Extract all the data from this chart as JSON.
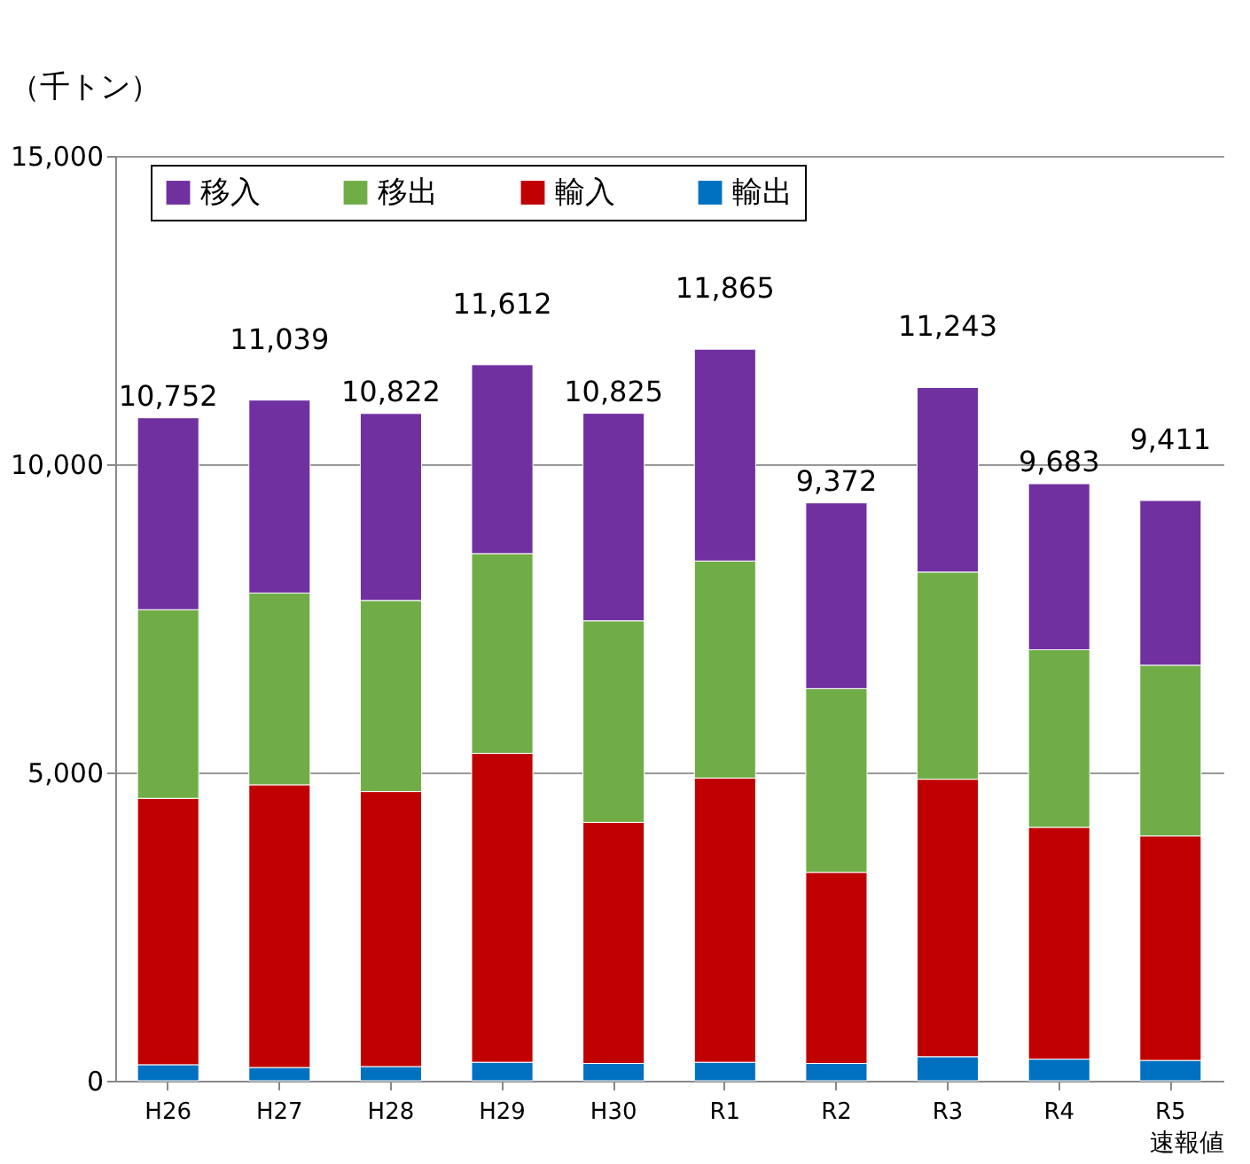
{
  "chart_data": {
    "type": "bar",
    "stacked": true,
    "ylabel": "（千トン）",
    "categories": [
      "H26",
      "H27",
      "H28",
      "H29",
      "H30",
      "R1",
      "R2",
      "R3",
      "R4",
      "R5"
    ],
    "series": [
      {
        "name": "輸出",
        "color": "#0070c0",
        "values": [
          260,
          215,
          230,
          300,
          280,
          300,
          280,
          390,
          350,
          330
        ]
      },
      {
        "name": "輸入",
        "color": "#c00000",
        "values": [
          4320,
          4585,
          4460,
          5010,
          3910,
          4610,
          3100,
          4500,
          3760,
          3640
        ]
      },
      {
        "name": "移出",
        "color": "#70ad47",
        "values": [
          3060,
          3110,
          3100,
          3240,
          3270,
          3520,
          2980,
          3360,
          2880,
          2770
        ]
      },
      {
        "name": "移入",
        "color": "#7030a0",
        "values": [
          3112,
          3129,
          3032,
          3062,
          3365,
          3435,
          3012,
          2993,
          2693,
          2671
        ]
      }
    ],
    "totals": [
      "10,752",
      "11,039",
      "10,822",
      "11,612",
      "10,825",
      "11,865",
      "9,372",
      "11,243",
      "9,683",
      "9,411"
    ],
    "ylim": [
      0,
      15000
    ],
    "yticks": [
      0,
      {
        "value": 5000,
        "label": "5,000"
      },
      {
        "value": 10000,
        "label": "10,000"
      },
      {
        "value": 15000,
        "label": "15,000"
      }
    ],
    "grid": "y",
    "legend": "top",
    "annotations": [
      "速報値"
    ]
  }
}
